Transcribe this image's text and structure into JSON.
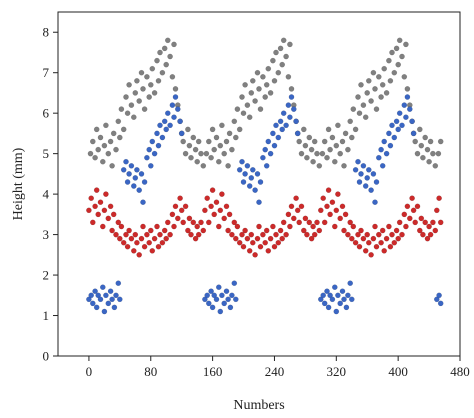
{
  "chart_data": {
    "type": "scatter",
    "title": "",
    "xlabel": "Numbers",
    "ylabel": "Height (mm)",
    "xlim": [
      -40,
      480
    ],
    "ylim": [
      0,
      8.5
    ],
    "x_ticks": [
      0,
      80,
      160,
      240,
      320,
      400,
      480
    ],
    "y_ticks": [
      0,
      1,
      2,
      3,
      4,
      5,
      6,
      7,
      8
    ],
    "grid": false,
    "legend": "none",
    "period": 150,
    "series": [
      {
        "color": "#808080",
        "values": [
          [
            2,
            5.0
          ],
          [
            5,
            5.3
          ],
          [
            8,
            4.9
          ],
          [
            10,
            5.6
          ],
          [
            12,
            5.1
          ],
          [
            15,
            5.4
          ],
          [
            18,
            4.8
          ],
          [
            20,
            5.2
          ],
          [
            22,
            5.7
          ],
          [
            25,
            5.0
          ],
          [
            28,
            5.3
          ],
          [
            30,
            4.7
          ],
          [
            32,
            5.5
          ],
          [
            35,
            5.1
          ],
          [
            38,
            5.8
          ],
          [
            40,
            5.4
          ],
          [
            42,
            6.1
          ],
          [
            45,
            5.6
          ],
          [
            48,
            6.4
          ],
          [
            50,
            6.0
          ],
          [
            52,
            6.7
          ],
          [
            55,
            6.2
          ],
          [
            58,
            5.9
          ],
          [
            60,
            6.5
          ],
          [
            62,
            6.8
          ],
          [
            65,
            6.3
          ],
          [
            68,
            7.0
          ],
          [
            70,
            6.6
          ],
          [
            72,
            6.1
          ],
          [
            75,
            6.9
          ],
          [
            78,
            6.4
          ],
          [
            80,
            6.7
          ],
          [
            82,
            7.1
          ],
          [
            85,
            6.5
          ],
          [
            88,
            7.3
          ],
          [
            90,
            6.8
          ],
          [
            92,
            7.5
          ],
          [
            95,
            7.0
          ],
          [
            98,
            7.6
          ],
          [
            100,
            7.2
          ],
          [
            102,
            7.8
          ],
          [
            105,
            7.4
          ],
          [
            108,
            6.9
          ],
          [
            110,
            7.7
          ],
          [
            112,
            6.6
          ],
          [
            115,
            6.2
          ],
          [
            118,
            5.8
          ],
          [
            120,
            5.5
          ],
          [
            122,
            5.3
          ],
          [
            125,
            5.0
          ],
          [
            128,
            5.6
          ],
          [
            130,
            5.2
          ],
          [
            132,
            4.9
          ],
          [
            135,
            5.4
          ],
          [
            138,
            5.1
          ],
          [
            140,
            4.8
          ],
          [
            142,
            5.3
          ],
          [
            145,
            5.0
          ],
          [
            148,
            4.7
          ]
        ]
      },
      {
        "color": "#3a66c4",
        "values": [
          [
            0,
            1.4
          ],
          [
            3,
            1.5
          ],
          [
            5,
            1.3
          ],
          [
            8,
            1.6
          ],
          [
            10,
            1.2
          ],
          [
            12,
            1.5
          ],
          [
            15,
            1.4
          ],
          [
            18,
            1.7
          ],
          [
            20,
            1.1
          ],
          [
            22,
            1.5
          ],
          [
            25,
            1.3
          ],
          [
            28,
            1.6
          ],
          [
            30,
            1.4
          ],
          [
            33,
            1.2
          ],
          [
            35,
            1.5
          ],
          [
            38,
            1.8
          ],
          [
            40,
            1.4
          ],
          [
            45,
            4.6
          ],
          [
            48,
            4.8
          ],
          [
            50,
            4.3
          ],
          [
            52,
            4.5
          ],
          [
            55,
            4.7
          ],
          [
            58,
            4.2
          ],
          [
            60,
            4.4
          ],
          [
            62,
            4.6
          ],
          [
            65,
            4.1
          ],
          [
            68,
            4.5
          ],
          [
            70,
            3.8
          ],
          [
            72,
            4.3
          ],
          [
            75,
            4.9
          ],
          [
            78,
            5.1
          ],
          [
            80,
            4.7
          ],
          [
            82,
            5.3
          ],
          [
            85,
            5.0
          ],
          [
            88,
            5.5
          ],
          [
            90,
            5.2
          ],
          [
            92,
            5.7
          ],
          [
            95,
            5.4
          ],
          [
            98,
            5.8
          ],
          [
            100,
            5.6
          ],
          [
            102,
            6.0
          ],
          [
            105,
            5.7
          ],
          [
            108,
            6.2
          ],
          [
            110,
            5.9
          ],
          [
            112,
            6.4
          ],
          [
            115,
            6.1
          ],
          [
            118,
            5.8
          ],
          [
            120,
            5.5
          ]
        ]
      },
      {
        "color": "#cc2a2a",
        "values": [
          [
            0,
            3.6
          ],
          [
            3,
            3.9
          ],
          [
            5,
            3.3
          ],
          [
            8,
            3.7
          ],
          [
            10,
            4.1
          ],
          [
            12,
            3.5
          ],
          [
            15,
            3.8
          ],
          [
            18,
            3.2
          ],
          [
            20,
            3.6
          ],
          [
            22,
            4.0
          ],
          [
            25,
            3.4
          ],
          [
            28,
            3.7
          ],
          [
            30,
            3.1
          ],
          [
            32,
            3.5
          ],
          [
            35,
            3.0
          ],
          [
            38,
            3.3
          ],
          [
            40,
            2.9
          ],
          [
            42,
            3.2
          ],
          [
            45,
            2.8
          ],
          [
            48,
            3.0
          ],
          [
            50,
            2.7
          ],
          [
            52,
            3.1
          ],
          [
            55,
            2.9
          ],
          [
            58,
            2.6
          ],
          [
            60,
            3.0
          ],
          [
            62,
            2.8
          ],
          [
            65,
            2.5
          ],
          [
            68,
            2.9
          ],
          [
            70,
            3.2
          ],
          [
            72,
            2.7
          ],
          [
            75,
            3.0
          ],
          [
            78,
            2.8
          ],
          [
            80,
            3.1
          ],
          [
            82,
            2.6
          ],
          [
            85,
            2.9
          ],
          [
            88,
            3.2
          ],
          [
            90,
            2.7
          ],
          [
            92,
            3.0
          ],
          [
            95,
            2.8
          ],
          [
            98,
            3.1
          ],
          [
            100,
            2.9
          ],
          [
            102,
            3.3
          ],
          [
            105,
            3.0
          ],
          [
            108,
            3.5
          ],
          [
            110,
            3.2
          ],
          [
            112,
            3.7
          ],
          [
            115,
            3.4
          ],
          [
            118,
            3.9
          ],
          [
            120,
            3.6
          ],
          [
            122,
            3.3
          ],
          [
            125,
            3.7
          ],
          [
            128,
            3.1
          ],
          [
            130,
            3.4
          ],
          [
            132,
            3.0
          ],
          [
            135,
            3.3
          ],
          [
            138,
            2.9
          ],
          [
            140,
            3.2
          ],
          [
            142,
            3.0
          ],
          [
            145,
            3.3
          ],
          [
            148,
            3.1
          ]
        ]
      }
    ]
  }
}
